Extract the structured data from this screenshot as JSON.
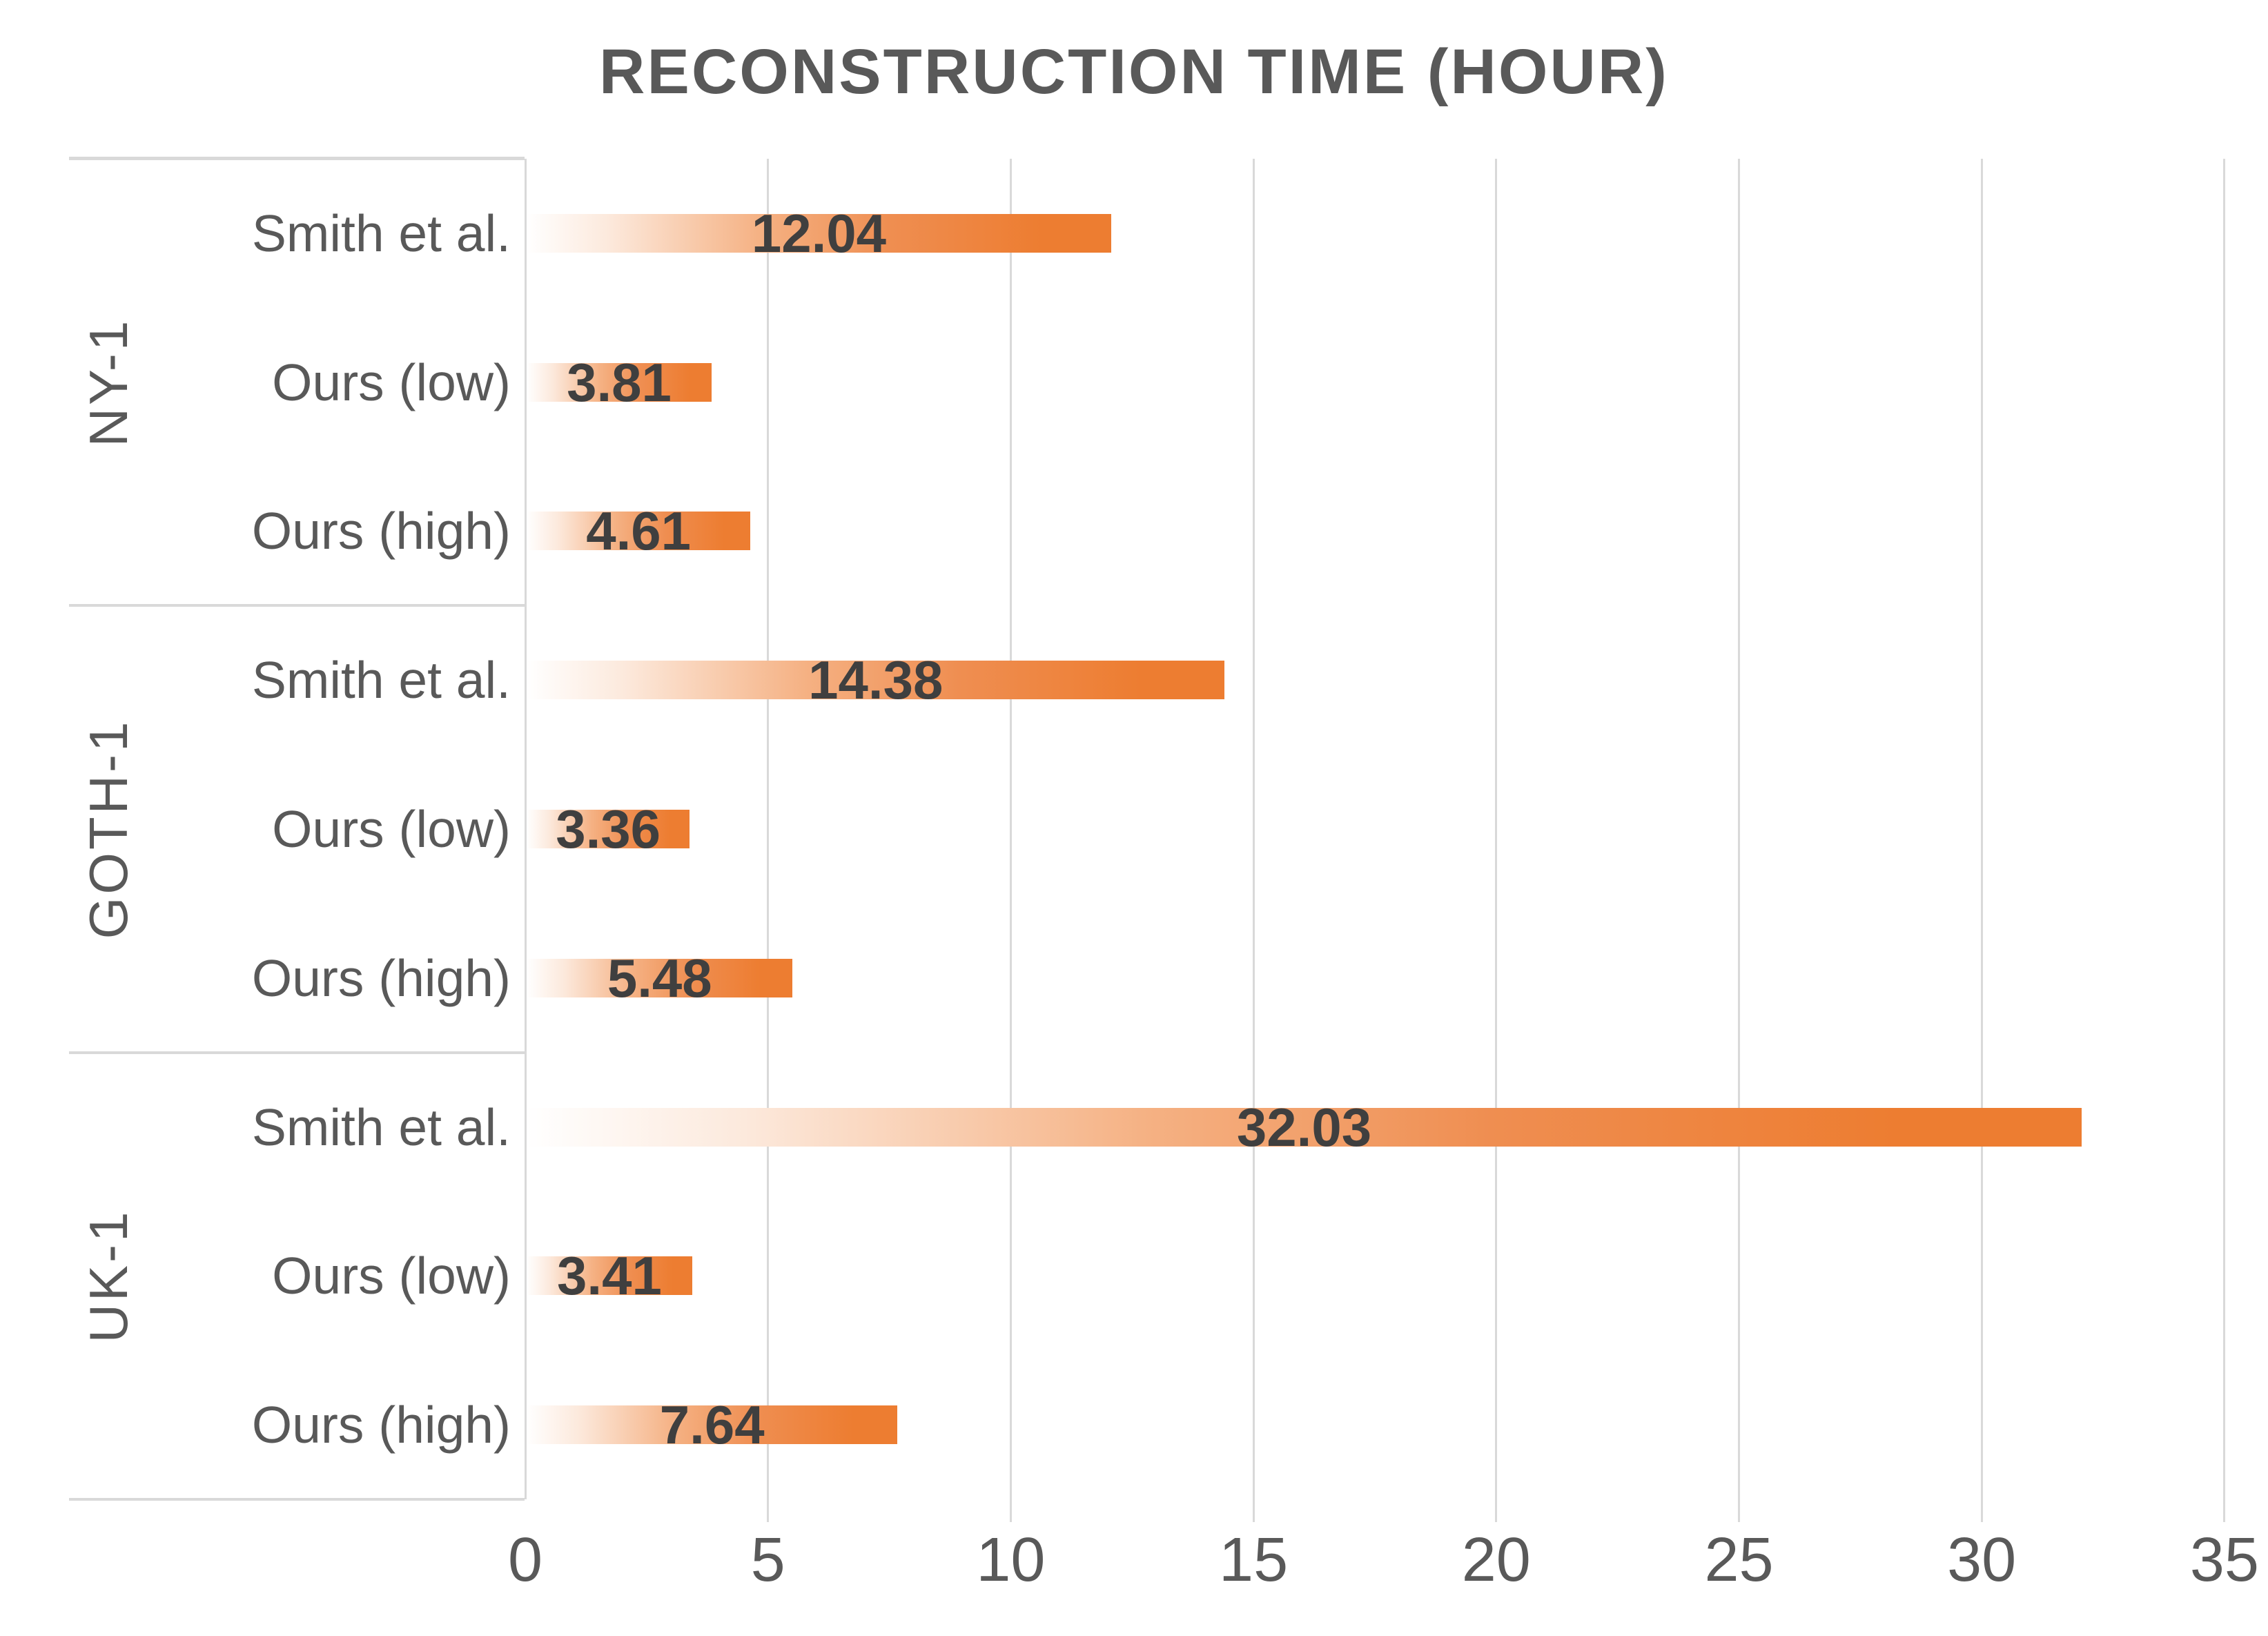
{
  "title": "RECONSTRUCTION TIME (HOUR)",
  "chart_data": {
    "type": "bar",
    "orientation": "horizontal",
    "title": "RECONSTRUCTION TIME (HOUR)",
    "xlabel": "",
    "ylabel": "",
    "xlim": [
      0,
      35
    ],
    "x_ticks": [
      "0",
      "5",
      "10",
      "15",
      "20",
      "25",
      "30",
      "35"
    ],
    "grid": true,
    "legend": "none",
    "groups": [
      {
        "label": "NY-1",
        "bars": [
          {
            "category": "Smith et al.",
            "value": 12.04,
            "value_label": "12.04"
          },
          {
            "category": "Ours (low)",
            "value": 3.81,
            "value_label": "3.81"
          },
          {
            "category": "Ours (high)",
            "value": 4.61,
            "value_label": "4.61"
          }
        ]
      },
      {
        "label": "GOTH-1",
        "bars": [
          {
            "category": "Smith et al.",
            "value": 14.38,
            "value_label": "14.38"
          },
          {
            "category": "Ours (low)",
            "value": 3.36,
            "value_label": "3.36"
          },
          {
            "category": "Ours (high)",
            "value": 5.48,
            "value_label": "5.48"
          }
        ]
      },
      {
        "label": "UK-1",
        "bars": [
          {
            "category": "Smith et al.",
            "value": 32.03,
            "value_label": "32.03"
          },
          {
            "category": "Ours (low)",
            "value": 3.41,
            "value_label": "3.41"
          },
          {
            "category": "Ours (high)",
            "value": 7.64,
            "value_label": "7.64"
          }
        ]
      }
    ],
    "colors": {
      "bar": "#ED7D31",
      "bar_gradient_start": "#FFFFFF",
      "value_label": "#3F3F3F",
      "axis_text": "#595959",
      "grid": "#D9D9D9",
      "background": "#FFFFFF"
    }
  }
}
